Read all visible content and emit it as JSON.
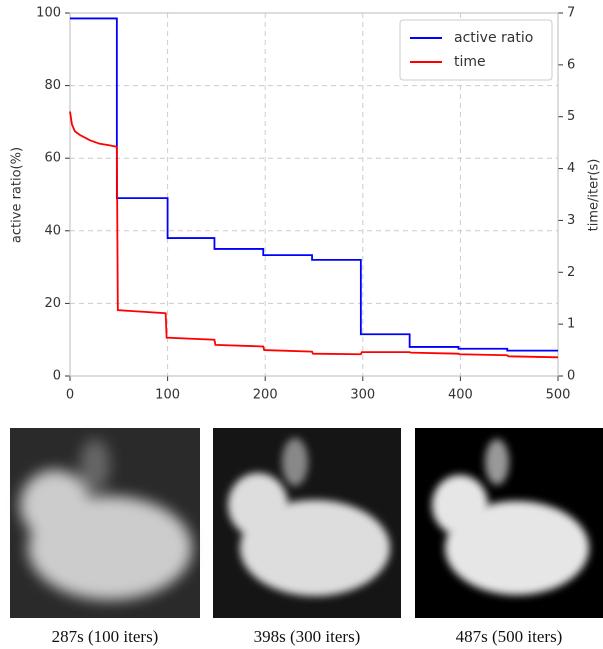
{
  "chart_data": {
    "type": "line",
    "ylabel": "active ratio(%)",
    "y2label": "time/iter(s)",
    "xlim": [
      0,
      500
    ],
    "xticks": [
      0,
      100,
      200,
      300,
      400,
      500
    ],
    "ylim": [
      0,
      100
    ],
    "yticks": [
      0,
      20,
      40,
      60,
      80,
      100
    ],
    "y2lim": [
      0,
      7
    ],
    "y2ticks": [
      0,
      1,
      2,
      3,
      4,
      5,
      6,
      7
    ],
    "grid": true,
    "legend": "upper right",
    "series": [
      {
        "name": "active ratio",
        "color": "#0000ff",
        "x": [
          0,
          48,
          48,
          100,
          100,
          148,
          148,
          198,
          198,
          248,
          248,
          298,
          298,
          348,
          348,
          398,
          398,
          448,
          448,
          500
        ],
        "values": [
          98.5,
          98.5,
          49,
          49,
          38,
          38,
          35,
          35,
          33.3,
          33.3,
          32,
          32,
          11.5,
          11.5,
          8,
          8,
          7.5,
          7.5,
          7,
          7
        ]
      },
      {
        "name": "time",
        "color": "#ff0000",
        "axis": "y2",
        "x": [
          0,
          2,
          5,
          10,
          20,
          30,
          40,
          48,
          49,
          98,
          99,
          148,
          149,
          198,
          199,
          248,
          249,
          298,
          299,
          348,
          349,
          398,
          399,
          448,
          449,
          500
        ],
        "values": [
          5.1,
          4.85,
          4.72,
          4.65,
          4.55,
          4.48,
          4.45,
          4.42,
          1.27,
          1.21,
          0.74,
          0.7,
          0.6,
          0.57,
          0.5,
          0.47,
          0.43,
          0.42,
          0.46,
          0.46,
          0.45,
          0.43,
          0.42,
          0.4,
          0.38,
          0.36
        ]
      }
    ]
  },
  "captions": [
    "287s (100 iters)",
    "398s (300 iters)",
    "487s (500 iters)"
  ]
}
